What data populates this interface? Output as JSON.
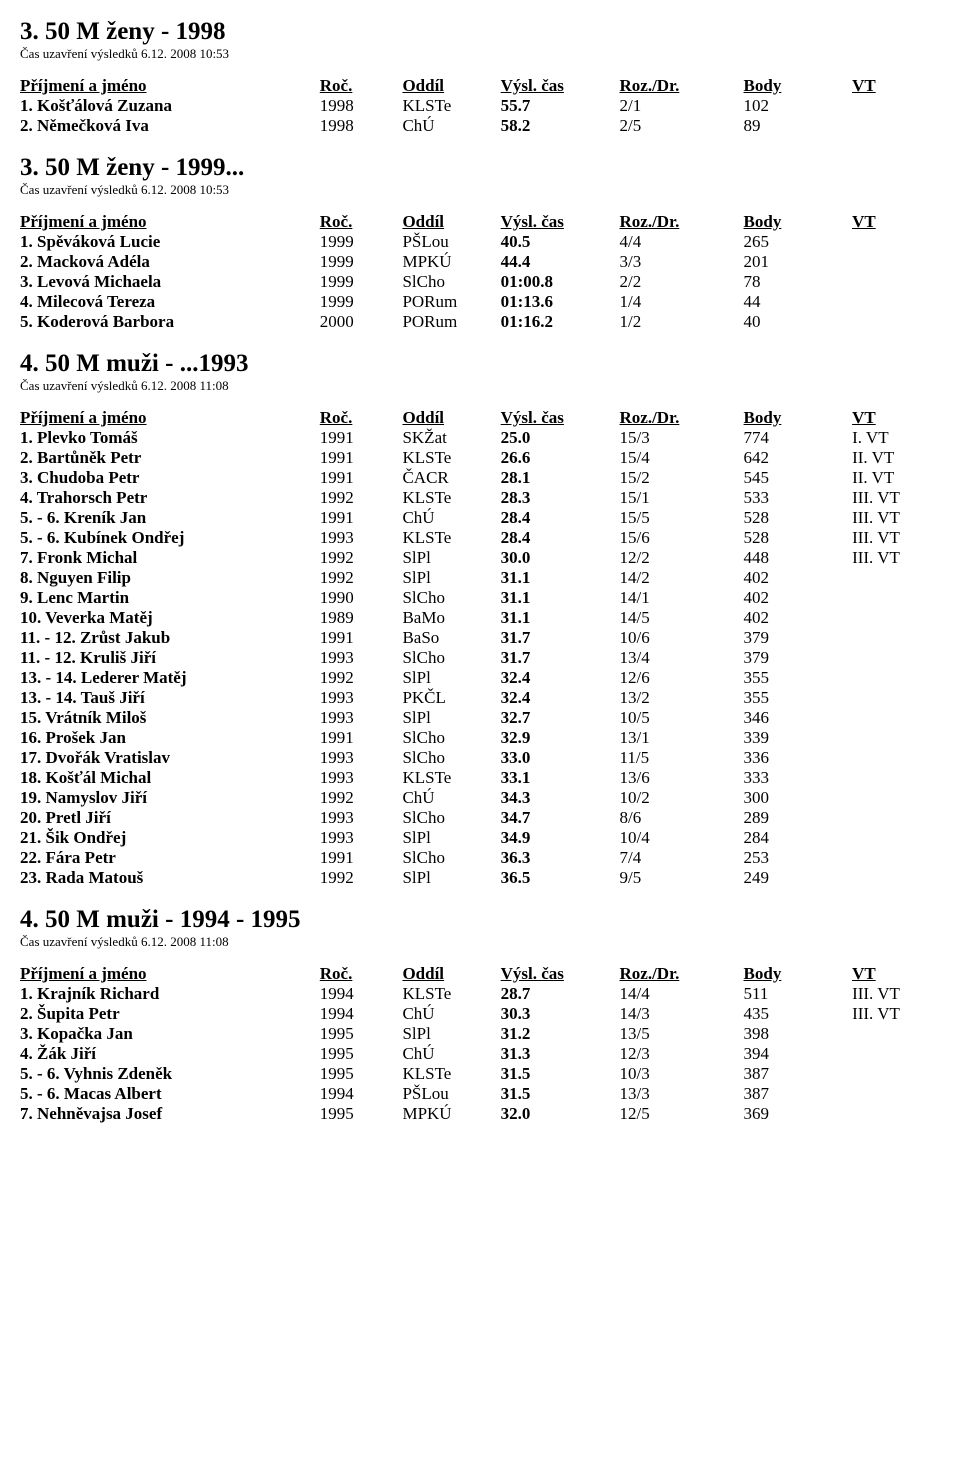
{
  "columns": {
    "name": "Příjmení a jméno",
    "roc": "Roč.",
    "oddil": "Oddíl",
    "cas": "Výsl. čas",
    "roz": "Roz./Dr.",
    "body": "Body",
    "vt": "VT"
  },
  "sections": [
    {
      "title": "3. 50 M ženy - 1998",
      "subtitle": "Čas uzavření výsledků 6.12. 2008 10:53",
      "rows": [
        {
          "name": "1. Košťálová Zuzana",
          "roc": "1998",
          "oddil": "KLSTe",
          "cas": "55.7",
          "roz": "2/1",
          "body": "102",
          "vt": ""
        },
        {
          "name": "2. Němečková Iva",
          "roc": "1998",
          "oddil": "ChÚ",
          "cas": "58.2",
          "roz": "2/5",
          "body": "89",
          "vt": ""
        }
      ]
    },
    {
      "title": "3. 50 M ženy - 1999...",
      "subtitle": "Čas uzavření výsledků 6.12. 2008 10:53",
      "rows": [
        {
          "name": "1. Spěváková Lucie",
          "roc": "1999",
          "oddil": "PŠLou",
          "cas": "40.5",
          "roz": "4/4",
          "body": "265",
          "vt": ""
        },
        {
          "name": "2. Macková Adéla",
          "roc": "1999",
          "oddil": "MPKÚ",
          "cas": "44.4",
          "roz": "3/3",
          "body": "201",
          "vt": ""
        },
        {
          "name": "3. Levová Michaela",
          "roc": "1999",
          "oddil": "SlCho",
          "cas": "01:00.8",
          "roz": "2/2",
          "body": "78",
          "vt": ""
        },
        {
          "name": "4. Milecová Tereza",
          "roc": "1999",
          "oddil": "PORum",
          "cas": "01:13.6",
          "roz": "1/4",
          "body": "44",
          "vt": ""
        },
        {
          "name": "5. Koderová Barbora",
          "roc": "2000",
          "oddil": "PORum",
          "cas": "01:16.2",
          "roz": "1/2",
          "body": "40",
          "vt": ""
        }
      ]
    },
    {
      "title": "4. 50 M muži - ...1993",
      "subtitle": "Čas uzavření výsledků 6.12. 2008 11:08",
      "rows": [
        {
          "name": "1. Plevko Tomáš",
          "roc": "1991",
          "oddil": "SKŽat",
          "cas": "25.0",
          "roz": "15/3",
          "body": "774",
          "vt": "I. VT"
        },
        {
          "name": "2. Bartůněk Petr",
          "roc": "1991",
          "oddil": "KLSTe",
          "cas": "26.6",
          "roz": "15/4",
          "body": "642",
          "vt": "II. VT"
        },
        {
          "name": "3. Chudoba Petr",
          "roc": "1991",
          "oddil": "ČACR",
          "cas": "28.1",
          "roz": "15/2",
          "body": "545",
          "vt": "II. VT"
        },
        {
          "name": "4. Trahorsch Petr",
          "roc": "1992",
          "oddil": "KLSTe",
          "cas": "28.3",
          "roz": "15/1",
          "body": "533",
          "vt": "III. VT"
        },
        {
          "name": "5. - 6. Kreník Jan",
          "roc": "1991",
          "oddil": "ChÚ",
          "cas": "28.4",
          "roz": "15/5",
          "body": "528",
          "vt": "III. VT"
        },
        {
          "name": "5. - 6. Kubínek Ondřej",
          "roc": "1993",
          "oddil": "KLSTe",
          "cas": "28.4",
          "roz": "15/6",
          "body": "528",
          "vt": "III. VT"
        },
        {
          "name": "7. Fronk Michal",
          "roc": "1992",
          "oddil": "SlPl",
          "cas": "30.0",
          "roz": "12/2",
          "body": "448",
          "vt": "III. VT"
        },
        {
          "name": "8. Nguyen Filip",
          "roc": "1992",
          "oddil": "SlPl",
          "cas": "31.1",
          "roz": "14/2",
          "body": "402",
          "vt": ""
        },
        {
          "name": "9. Lenc Martin",
          "roc": "1990",
          "oddil": "SlCho",
          "cas": "31.1",
          "roz": "14/1",
          "body": "402",
          "vt": ""
        },
        {
          "name": "10. Veverka Matěj",
          "roc": "1989",
          "oddil": "BaMo",
          "cas": "31.1",
          "roz": "14/5",
          "body": "402",
          "vt": ""
        },
        {
          "name": "11. - 12. Zrůst Jakub",
          "roc": "1991",
          "oddil": "BaSo",
          "cas": "31.7",
          "roz": "10/6",
          "body": "379",
          "vt": ""
        },
        {
          "name": "11. - 12. Kruliš Jiří",
          "roc": "1993",
          "oddil": "SlCho",
          "cas": "31.7",
          "roz": "13/4",
          "body": "379",
          "vt": ""
        },
        {
          "name": "13. - 14. Lederer Matěj",
          "roc": "1992",
          "oddil": "SlPl",
          "cas": "32.4",
          "roz": "12/6",
          "body": "355",
          "vt": ""
        },
        {
          "name": "13. - 14. Tauš Jiří",
          "roc": "1993",
          "oddil": "PKČL",
          "cas": "32.4",
          "roz": "13/2",
          "body": "355",
          "vt": ""
        },
        {
          "name": "15. Vrátník Miloš",
          "roc": "1993",
          "oddil": "SlPl",
          "cas": "32.7",
          "roz": "10/5",
          "body": "346",
          "vt": ""
        },
        {
          "name": "16. Prošek Jan",
          "roc": "1991",
          "oddil": "SlCho",
          "cas": "32.9",
          "roz": "13/1",
          "body": "339",
          "vt": ""
        },
        {
          "name": "17. Dvořák Vratislav",
          "roc": "1993",
          "oddil": "SlCho",
          "cas": "33.0",
          "roz": "11/5",
          "body": "336",
          "vt": ""
        },
        {
          "name": "18. Košťál Michal",
          "roc": "1993",
          "oddil": "KLSTe",
          "cas": "33.1",
          "roz": "13/6",
          "body": "333",
          "vt": ""
        },
        {
          "name": "19. Namyslov Jiří",
          "roc": "1992",
          "oddil": "ChÚ",
          "cas": "34.3",
          "roz": "10/2",
          "body": "300",
          "vt": ""
        },
        {
          "name": "20. Pretl Jiří",
          "roc": "1993",
          "oddil": "SlCho",
          "cas": "34.7",
          "roz": "8/6",
          "body": "289",
          "vt": ""
        },
        {
          "name": "21. Šik Ondřej",
          "roc": "1993",
          "oddil": "SlPl",
          "cas": "34.9",
          "roz": "10/4",
          "body": "284",
          "vt": ""
        },
        {
          "name": "22. Fára Petr",
          "roc": "1991",
          "oddil": "SlCho",
          "cas": "36.3",
          "roz": "7/4",
          "body": "253",
          "vt": ""
        },
        {
          "name": "23. Rada Matouš",
          "roc": "1992",
          "oddil": "SlPl",
          "cas": "36.5",
          "roz": "9/5",
          "body": "249",
          "vt": ""
        }
      ]
    },
    {
      "title": "4. 50 M muži - 1994 - 1995",
      "subtitle": "Čas uzavření výsledků 6.12. 2008 11:08",
      "rows": [
        {
          "name": "1. Krajník Richard",
          "roc": "1994",
          "oddil": "KLSTe",
          "cas": "28.7",
          "roz": "14/4",
          "body": "511",
          "vt": "III. VT"
        },
        {
          "name": "2. Šupita Petr",
          "roc": "1994",
          "oddil": "ChÚ",
          "cas": "30.3",
          "roz": "14/3",
          "body": "435",
          "vt": "III. VT"
        },
        {
          "name": "3. Kopačka Jan",
          "roc": "1995",
          "oddil": "SlPl",
          "cas": "31.2",
          "roz": "13/5",
          "body": "398",
          "vt": ""
        },
        {
          "name": "4. Žák Jiří",
          "roc": "1995",
          "oddil": "ChÚ",
          "cas": "31.3",
          "roz": "12/3",
          "body": "394",
          "vt": ""
        },
        {
          "name": "5. - 6. Vyhnis Zdeněk",
          "roc": "1995",
          "oddil": "KLSTe",
          "cas": "31.5",
          "roz": "10/3",
          "body": "387",
          "vt": ""
        },
        {
          "name": "5. - 6. Macas Albert",
          "roc": "1994",
          "oddil": "PŠLou",
          "cas": "31.5",
          "roz": "13/3",
          "body": "387",
          "vt": ""
        },
        {
          "name": "7. Nehněvajsa Josef",
          "roc": "1995",
          "oddil": "MPKÚ",
          "cas": "32.0",
          "roz": "12/5",
          "body": "369",
          "vt": ""
        }
      ]
    }
  ]
}
